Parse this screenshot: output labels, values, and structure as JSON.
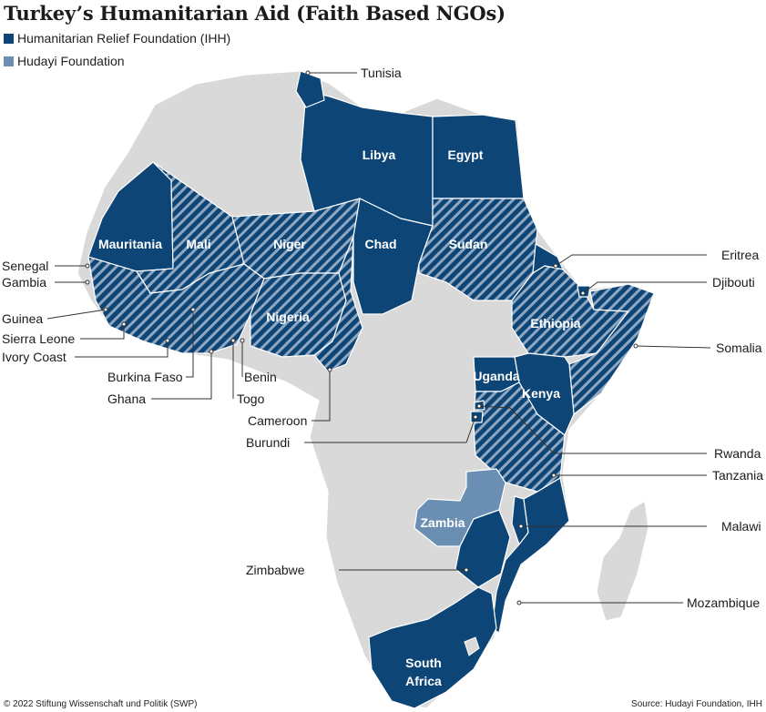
{
  "title": "Turkey’s Humanitarian Aid (Faith Based NGOs)",
  "legend": [
    {
      "label": "Humanitarian Relief Foundation (IHH)",
      "color": "#0d4576"
    },
    {
      "label": "Hudayi Foundation",
      "color": "#6a8fb3"
    }
  ],
  "colors": {
    "ihh": "#0d4576",
    "hudayi": "#6a8fb3",
    "other": "#d9d9d9",
    "hatch": "#8fa7c0",
    "leader": "#333333"
  },
  "labels_in_map": {
    "libya": "Libya",
    "egypt": "Egypt",
    "mauritania": "Mauritania",
    "mali": "Mali",
    "niger": "Niger",
    "chad": "Chad",
    "sudan": "Sudan",
    "nigeria": "Nigeria",
    "ethiopia": "Ethiopia",
    "uganda": "Uganda",
    "kenya": "Kenya",
    "zambia": "Zambia",
    "south_africa_1": "South",
    "south_africa_2": "Africa"
  },
  "callouts": {
    "tunisia": "Tunisia",
    "eritrea": "Eritrea",
    "djibouti": "Djibouti",
    "somalia": "Somalia",
    "rwanda": "Rwanda",
    "tanzania": "Tanzania",
    "malawi": "Malawi",
    "mozambique": "Mozambique",
    "zimbabwe": "Zimbabwe",
    "senegal": "Senegal",
    "gambia": "Gambia",
    "guinea": "Guinea",
    "sierra_leone": "Sierra Leone",
    "ivory_coast": "Ivory Coast",
    "burkina_faso": "Burkina Faso",
    "ghana": "Ghana",
    "benin": "Benin",
    "togo": "Togo",
    "cameroon": "Cameroon",
    "burundi": "Burundi"
  },
  "footer": {
    "left": "© 2022 Stiftung Wissenschaft und Politik (SWP)",
    "right": "Source: Hudayi Foundation, IHH"
  }
}
